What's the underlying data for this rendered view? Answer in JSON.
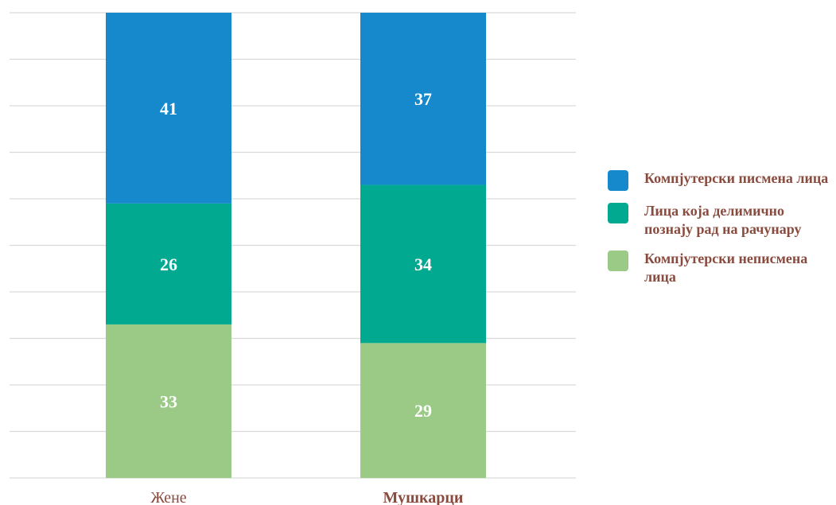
{
  "chart_data": {
    "type": "bar",
    "stacked": true,
    "normalized": true,
    "categories": [
      "Жене",
      "Мушкарци"
    ],
    "series": [
      {
        "name": "Компјутерски неписмена лица",
        "values": [
          33,
          29
        ],
        "color": "#9bca86"
      },
      {
        "name": "Лица која делимично познају рад на рачунару",
        "values": [
          26,
          34
        ],
        "color": "#00a98f"
      },
      {
        "name": "Компјутерски писмена лица",
        "values": [
          41,
          37
        ],
        "color": "#1589cc"
      }
    ],
    "ylim": [
      0,
      100
    ],
    "grid": true,
    "legend_position": "right",
    "title": "",
    "xlabel": "",
    "ylabel": ""
  },
  "legend": [
    {
      "label": "Компјутерски писмена лица",
      "color": "#1589cc"
    },
    {
      "label": "Лица која делимично познају рад на рачунару",
      "color": "#00a98f"
    },
    {
      "label": "Компјутерски неписмена лица",
      "color": "#9bca86"
    }
  ]
}
